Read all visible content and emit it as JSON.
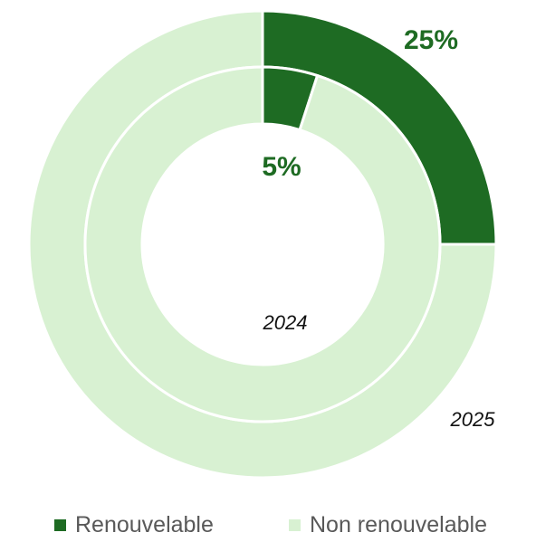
{
  "chart_data": {
    "type": "pie",
    "variant": "nested-donut",
    "title": "",
    "colors": {
      "Renouvelable": "#1e6b23",
      "Non renouvelable": "#d8f1d2"
    },
    "rings": [
      {
        "name": "2025",
        "position": "outer",
        "slices": [
          {
            "label": "Renouvelable",
            "value": 25,
            "data_label": "25%"
          },
          {
            "label": "Non renouvelable",
            "value": 75
          }
        ]
      },
      {
        "name": "2024",
        "position": "inner",
        "slices": [
          {
            "label": "Renouvelable",
            "value": 5,
            "data_label": "5%"
          },
          {
            "label": "Non renouvelable",
            "value": 95
          }
        ]
      }
    ],
    "legend": {
      "position": "bottom",
      "entries": [
        {
          "label": "Renouvelable",
          "color": "#1e6b23"
        },
        {
          "label": "Non renouvelable",
          "color": "#d8f1d2"
        }
      ]
    }
  }
}
